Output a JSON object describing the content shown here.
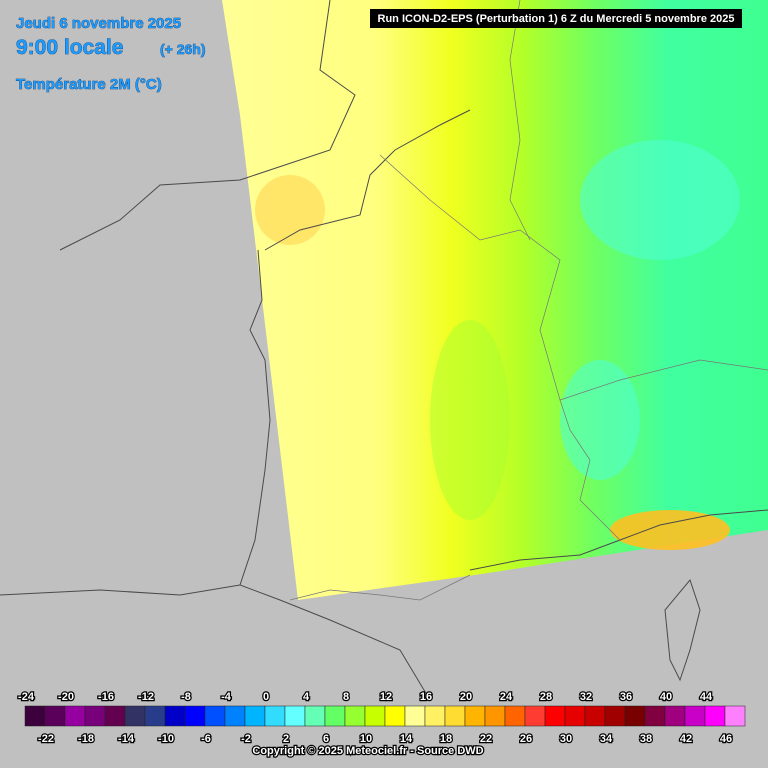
{
  "header": {
    "date": "Jeudi 6 novembre 2025",
    "time": "9:00 locale",
    "lead": "(+ 26h)",
    "variable": "Température 2M (°C)"
  },
  "run": "Run ICON-D2-EPS (Perturbation 1) 6 Z du Mercredi 5 novembre 2025",
  "legend": {
    "labels": [
      -24,
      -22,
      -20,
      -18,
      -16,
      -14,
      -12,
      -10,
      -8,
      -6,
      -4,
      -2,
      0,
      2,
      4,
      6,
      8,
      10,
      12,
      14,
      16,
      18,
      20,
      22,
      24,
      26,
      28,
      30,
      32,
      34,
      36,
      38,
      40,
      42,
      44,
      46
    ],
    "colors": [
      "#3c003c",
      "#5a005a",
      "#9600a0",
      "#78007a",
      "#640050",
      "#323264",
      "#283c8c",
      "#0000c8",
      "#0000ff",
      "#0050ff",
      "#0082ff",
      "#00b4ff",
      "#32dcff",
      "#64ffff",
      "#64ffb4",
      "#64ff64",
      "#96ff32",
      "#c8ff00",
      "#ffff00",
      "#ffff96",
      "#fff064",
      "#ffdc32",
      "#ffb400",
      "#ff9600",
      "#ff6400",
      "#ff3c32",
      "#ff0000",
      "#e60000",
      "#c80000",
      "#a00000",
      "#780000",
      "#800040",
      "#a00080",
      "#c800c8",
      "#ff00ff",
      "#ff80ff"
    ]
  },
  "copyright": "Copyright © 2025 Meteociel.fr - Source DWD"
}
